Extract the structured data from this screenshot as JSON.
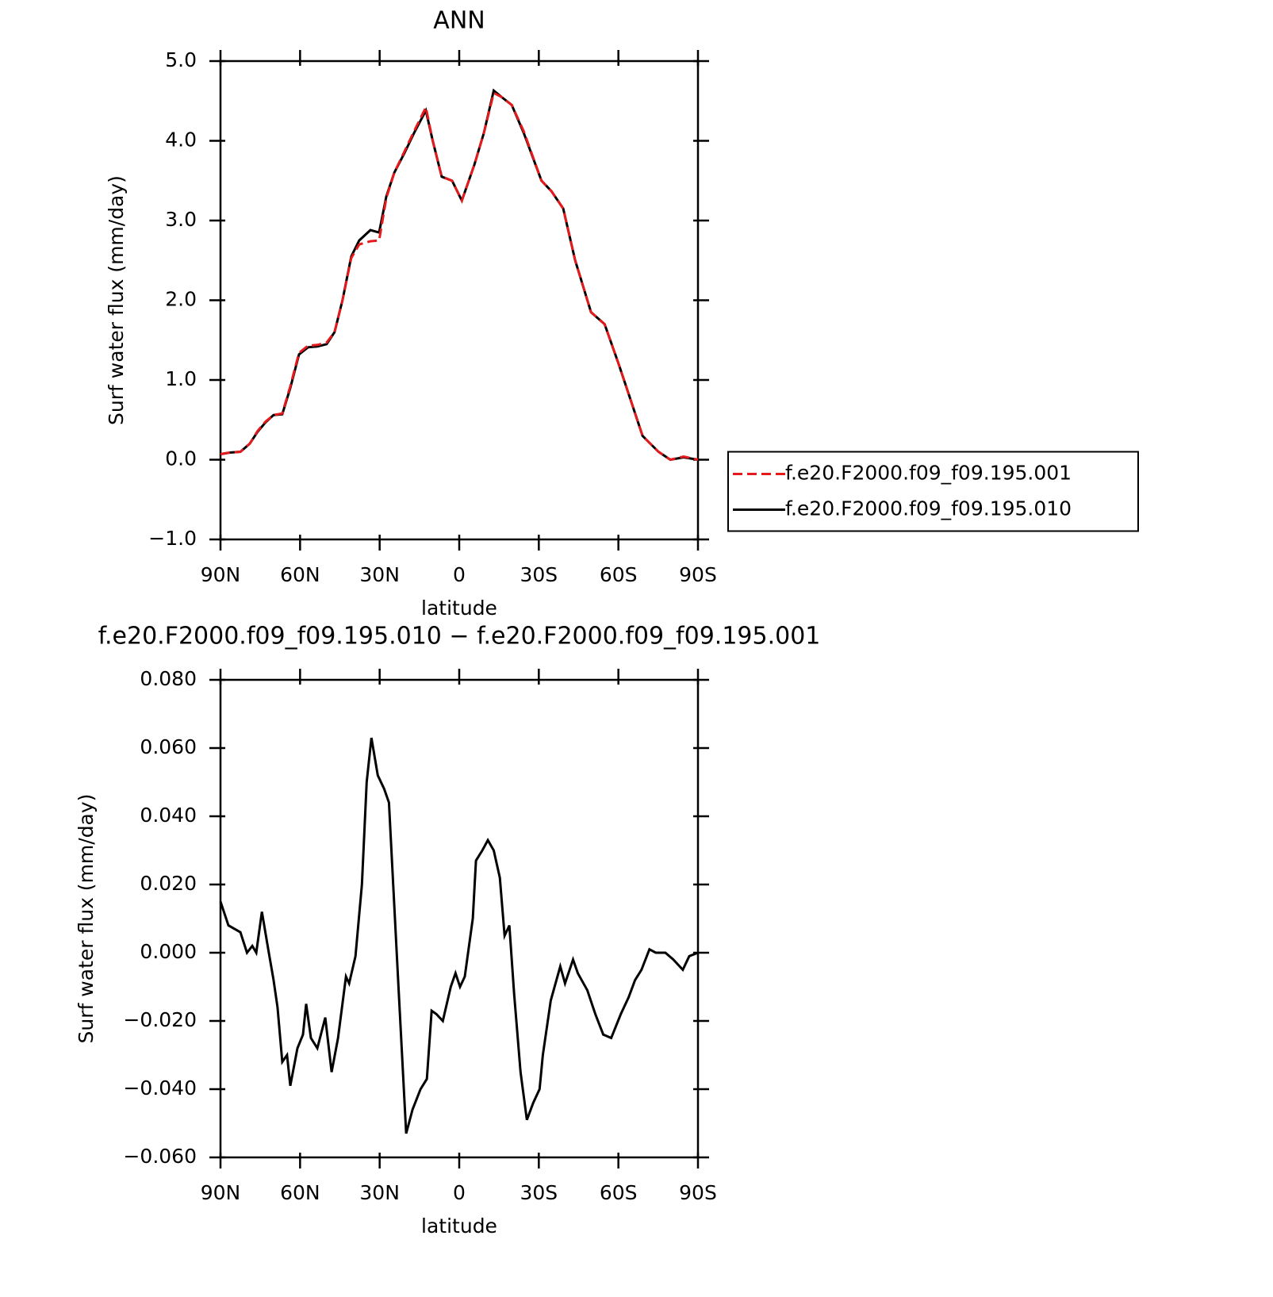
{
  "chart_data": [
    {
      "type": "line",
      "title": "ANN",
      "x_label": "latitude",
      "y_label": "Surf water flux (mm/day)",
      "xlim": [
        90,
        -90
      ],
      "xticks": [
        {
          "value": 90,
          "label": "90N"
        },
        {
          "value": 60,
          "label": "60N"
        },
        {
          "value": 30,
          "label": "30N"
        },
        0,
        {
          "value": -30,
          "label": "30S"
        },
        {
          "value": -60,
          "label": "60S"
        },
        {
          "value": -90,
          "label": "90S"
        }
      ],
      "ylim": [
        -1,
        5
      ],
      "yticks": [
        {
          "value": -1,
          "label": "−1.0"
        },
        {
          "value": 0,
          "label": "0.0"
        },
        {
          "value": 1,
          "label": "1.0"
        },
        {
          "value": 2,
          "label": "2.0"
        },
        {
          "value": 3,
          "label": "3.0"
        },
        {
          "value": 4,
          "label": "4.0"
        },
        {
          "value": 5,
          "label": "5.0"
        }
      ],
      "legend": "right",
      "x": [
        90,
        86.4,
        82.5,
        79,
        76,
        73,
        70,
        66.7,
        63.7,
        60.4,
        57,
        53.5,
        50,
        47,
        44,
        40.7,
        37.7,
        33.5,
        30.2,
        27.5,
        24.5,
        20.6,
        17,
        12.6,
        10,
        6.6,
        2.7,
        -1,
        -5.7,
        -9.3,
        -13,
        -15.9,
        -19.8,
        -24.3,
        -31,
        -34.7,
        -39.2,
        -43.7,
        -49.7,
        -54.8,
        -60.1,
        -64.6,
        -69.1,
        -75.1,
        -79.6,
        -84.6,
        -90
      ],
      "series": [
        {
          "name": "f.e20.F2000.f09_f09.195.001",
          "color": "#e41a1c",
          "dashed": true,
          "values": [
            0.07,
            0.09,
            0.1,
            0.2,
            0.36,
            0.48,
            0.56,
            0.58,
            0.92,
            1.34,
            1.43,
            1.44,
            1.47,
            1.6,
            2.0,
            2.53,
            2.7,
            2.74,
            2.75,
            3.28,
            3.6,
            3.87,
            4.12,
            4.42,
            4.0,
            3.55,
            3.5,
            3.25,
            3.7,
            4.1,
            4.6,
            4.55,
            4.45,
            4.12,
            3.5,
            3.37,
            3.15,
            2.5,
            1.85,
            1.7,
            1.2,
            0.75,
            0.3,
            0.1,
            0,
            0.04,
            0
          ]
        },
        {
          "name": "f.e20.F2000.f09_f09.195.010",
          "color": "#000000",
          "dashed": false,
          "values": [
            0.07,
            0.09,
            0.1,
            0.2,
            0.35,
            0.47,
            0.56,
            0.57,
            0.9,
            1.32,
            1.41,
            1.42,
            1.45,
            1.6,
            2.0,
            2.55,
            2.75,
            2.88,
            2.85,
            3.3,
            3.6,
            3.85,
            4.1,
            4.38,
            4.0,
            3.55,
            3.5,
            3.25,
            3.7,
            4.1,
            4.63,
            4.55,
            4.45,
            4.1,
            3.5,
            3.37,
            3.15,
            2.5,
            1.85,
            1.7,
            1.2,
            0.75,
            0.3,
            0.1,
            0,
            0.03,
            0
          ]
        }
      ]
    },
    {
      "type": "line",
      "title": "f.e20.F2000.f09_f09.195.010 − f.e20.F2000.f09_f09.195.001",
      "x_label": "latitude",
      "y_label": "Surf water flux (mm/day)",
      "xlim": [
        90,
        -90
      ],
      "xticks": [
        {
          "value": 90,
          "label": "90N"
        },
        {
          "value": 60,
          "label": "60N"
        },
        {
          "value": 30,
          "label": "30N"
        },
        0,
        {
          "value": -30,
          "label": "30S"
        },
        {
          "value": -60,
          "label": "60S"
        },
        {
          "value": -90,
          "label": "90S"
        }
      ],
      "ylim": [
        -0.06,
        0.08
      ],
      "yticks": [
        {
          "value": -0.06,
          "label": "−0.060"
        },
        {
          "value": -0.04,
          "label": "−0.040"
        },
        {
          "value": -0.02,
          "label": "−0.020"
        },
        {
          "value": 0,
          "label": "0.000"
        },
        {
          "value": 0.02,
          "label": "0.020"
        },
        {
          "value": 0.04,
          "label": "0.040"
        },
        {
          "value": 0.06,
          "label": "0.060"
        },
        {
          "value": 0.08,
          "label": "0.080"
        }
      ],
      "x": [
        90,
        87,
        82.5,
        80,
        78,
        76.5,
        74.4,
        72,
        70,
        68.5,
        66.7,
        64.9,
        63.7,
        61,
        58.9,
        57.7,
        55.9,
        53.5,
        50.5,
        48.1,
        45.7,
        42.7,
        41.5,
        39.1,
        36.7,
        34.9,
        33.1,
        30.7,
        28.3,
        26.5,
        22.9,
        20,
        17.6,
        14.6,
        12.2,
        10.4,
        8.6,
        6.2,
        3.2,
        1.4,
        -0.3,
        -2.1,
        -5.1,
        -6.3,
        -8.7,
        -10.8,
        -13,
        -15.3,
        -17.1,
        -18.9,
        -20.7,
        -23.1,
        -25.5,
        -27.9,
        -30.3,
        -31.5,
        -34.5,
        -38.1,
        -39.9,
        -42.9,
        -44.7,
        -48.3,
        -51.3,
        -54.3,
        -57.3,
        -60.9,
        -63.9,
        -66.3,
        -68.7,
        -71.7,
        -74.1,
        -77.7,
        -80.7,
        -84.3,
        -86.7,
        -90
      ],
      "series": [
        {
          "color": "#000000",
          "dashed": false,
          "values": [
            0.015,
            0.008,
            0.006,
            0.0,
            0.002,
            0.0,
            0.012,
            0.001,
            -0.008,
            -0.016,
            -0.032,
            -0.03,
            -0.039,
            -0.028,
            -0.024,
            -0.015,
            -0.025,
            -0.028,
            -0.019,
            -0.035,
            -0.025,
            -0.007,
            -0.009,
            -0.001,
            0.02,
            0.05,
            0.063,
            0.052,
            0.048,
            0.044,
            -0.01,
            -0.053,
            -0.046,
            -0.04,
            -0.037,
            -0.017,
            -0.018,
            -0.02,
            -0.01,
            -0.006,
            -0.01,
            -0.007,
            0.01,
            0.027,
            0.03,
            0.033,
            0.03,
            0.022,
            0.005,
            0.008,
            -0.012,
            -0.035,
            -0.049,
            -0.044,
            -0.04,
            -0.03,
            -0.014,
            -0.004,
            -0.009,
            -0.002,
            -0.006,
            -0.011,
            -0.018,
            -0.024,
            -0.025,
            -0.018,
            -0.013,
            -0.008,
            -0.005,
            0.001,
            0.0,
            0.0,
            -0.002,
            -0.005,
            -0.001,
            0.0
          ]
        }
      ]
    }
  ]
}
